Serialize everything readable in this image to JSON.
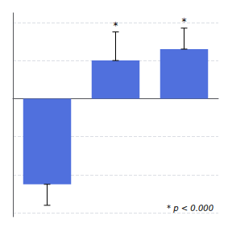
{
  "chart_data": {
    "type": "bar",
    "categories": [
      null,
      null,
      null
    ],
    "values": [
      -4.5,
      2.0,
      2.6
    ],
    "errors_down": [
      1.1,
      0,
      0
    ],
    "errors_up": [
      0,
      1.5,
      1.1
    ],
    "significance": [
      null,
      "*",
      "*"
    ],
    "annotations": [
      "* p < 0.000"
    ],
    "ylim": [
      -6.2,
      4.5
    ],
    "yticks": [
      -6,
      -4,
      -2,
      0,
      2,
      4
    ],
    "grid": true,
    "tick_labels": false
  }
}
